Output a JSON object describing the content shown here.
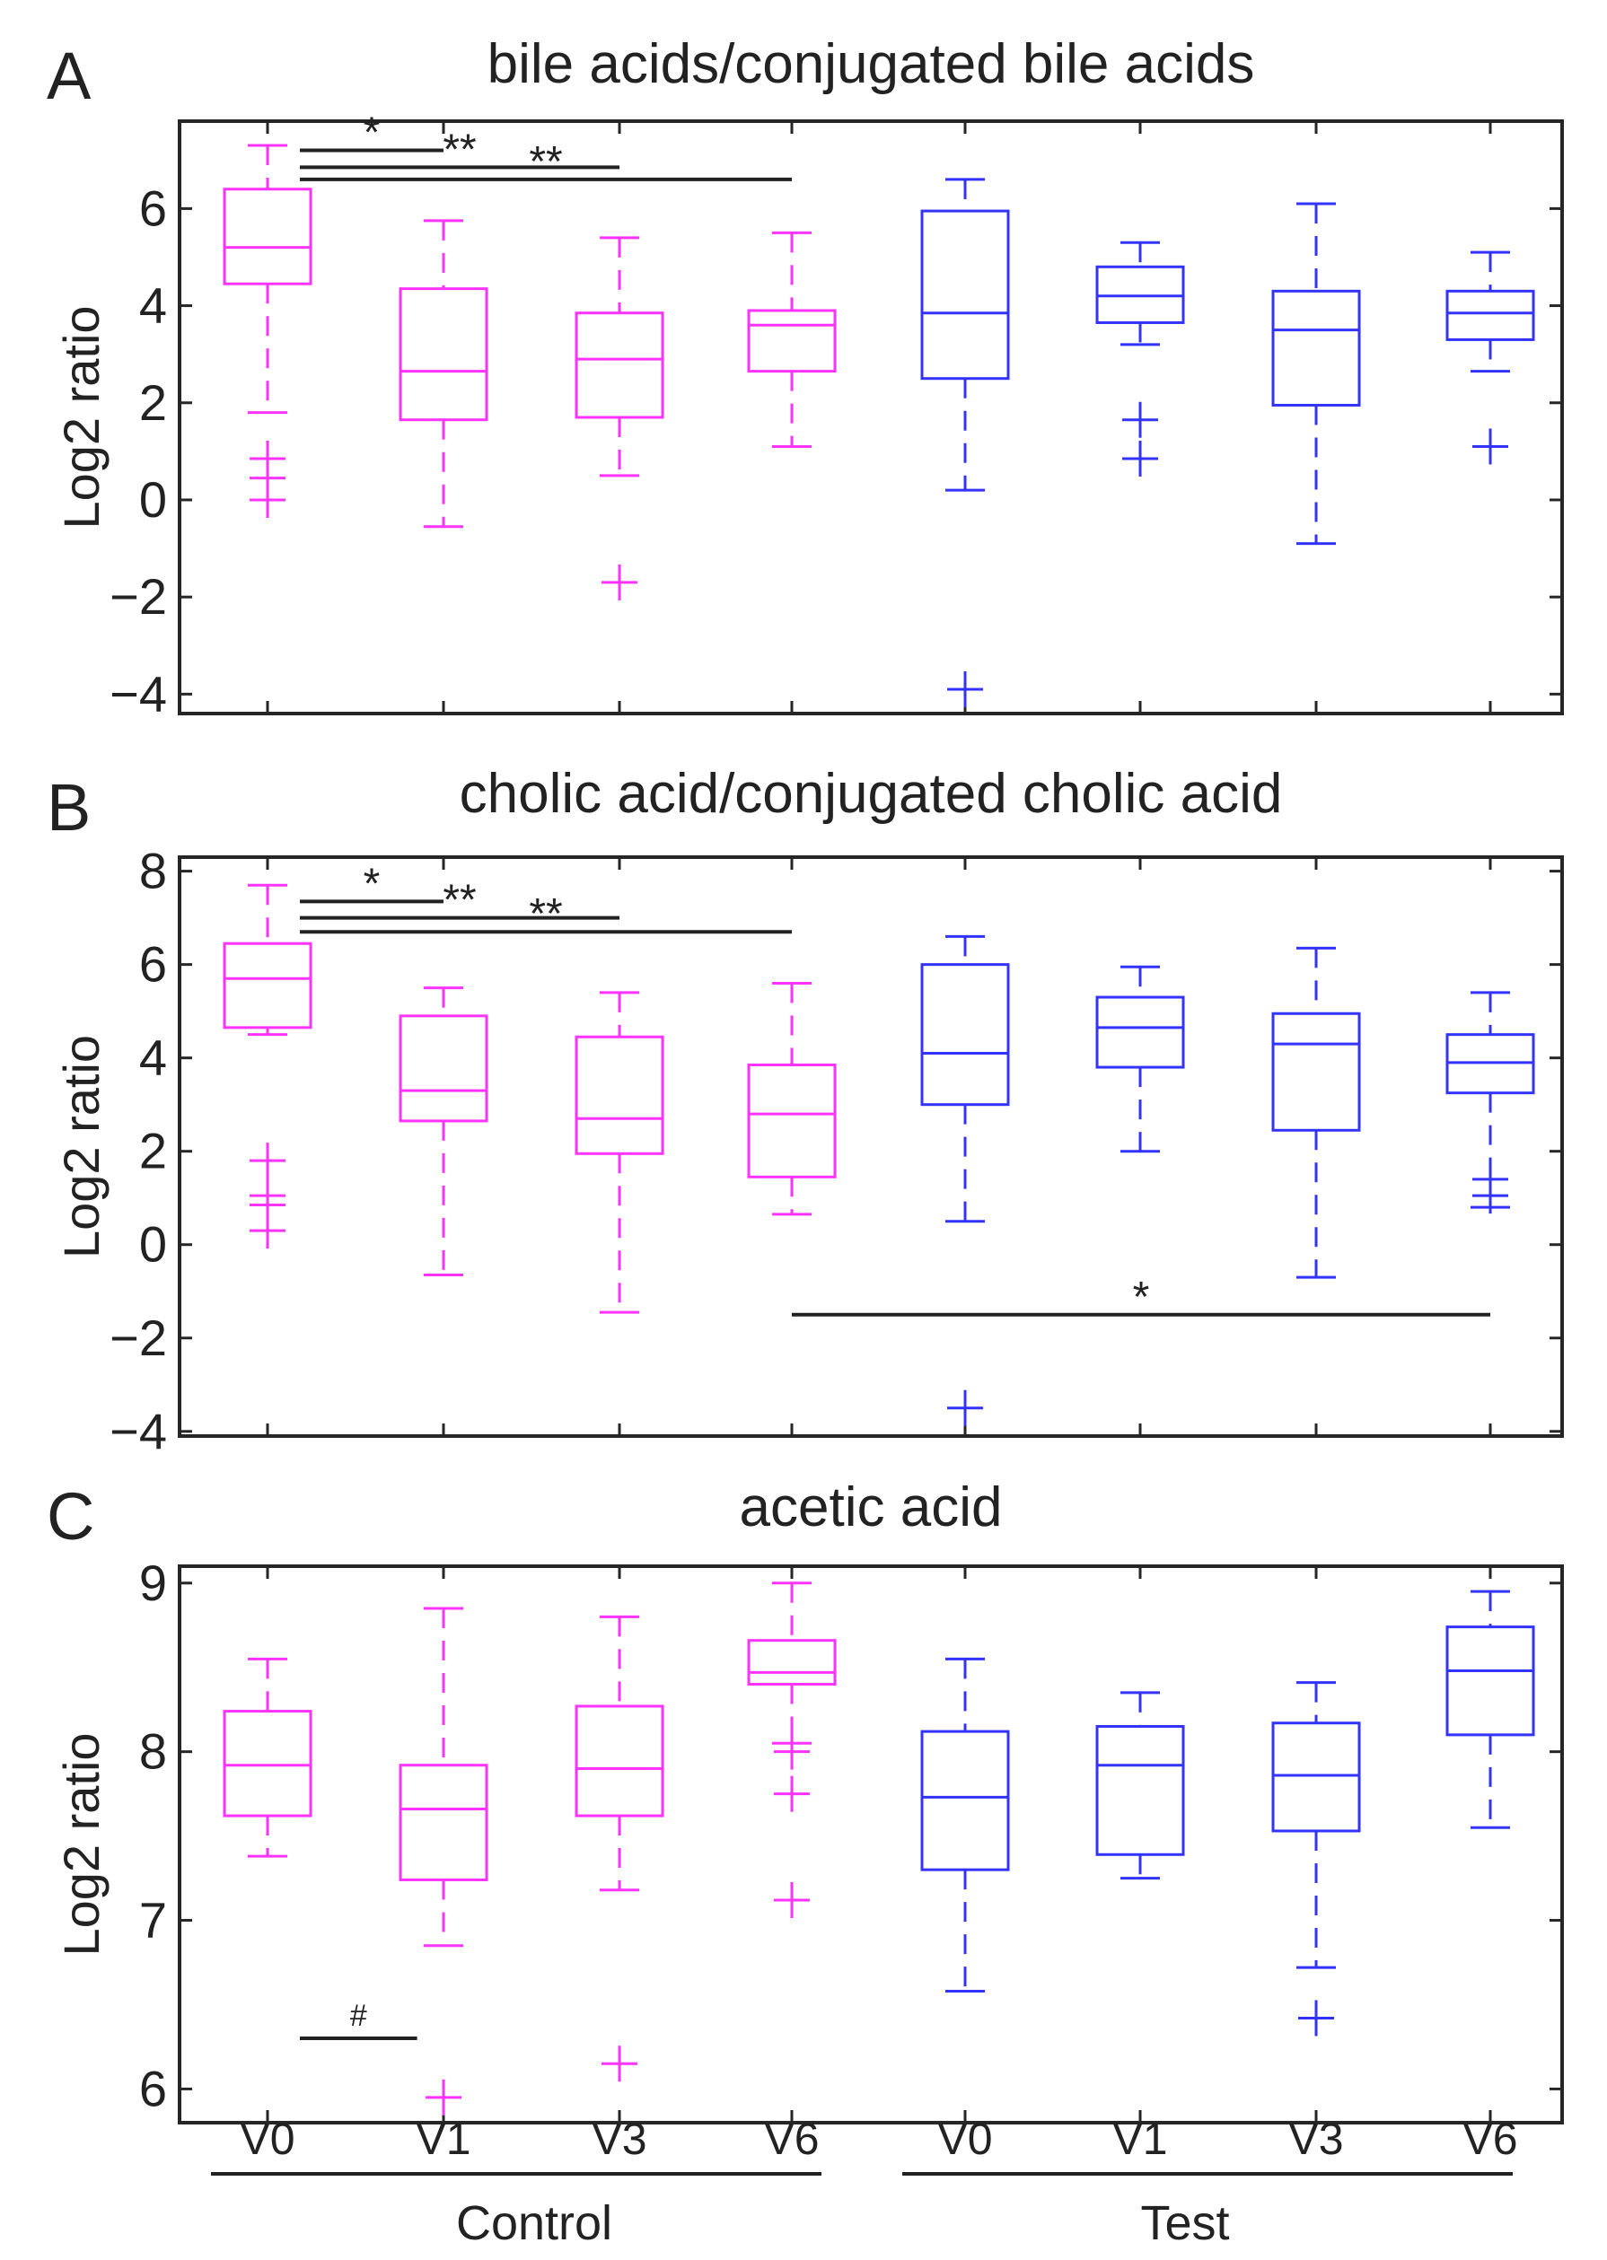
{
  "figure": {
    "x_group_labels": [
      "Control",
      "Test"
    ],
    "ylabel": "Log2 ratio",
    "colors": {
      "Control": "#ff33ff",
      "Test": "#3333ff",
      "annotation": "#222222"
    }
  },
  "chart_data": [
    {
      "type": "box",
      "panel": "A",
      "title": "bile acids/conjugated bile acids",
      "ylabel": "Log2 ratio",
      "ylim": [
        -4.4,
        7.8
      ],
      "yticks": [
        -4,
        -2,
        0,
        2,
        4,
        6
      ],
      "ytick_labels": [
        "−4",
        "−2",
        "0",
        "2",
        "4",
        "6"
      ],
      "categories": [
        "V0",
        "V1",
        "V3",
        "V6",
        "V0",
        "V1",
        "V3",
        "V6"
      ],
      "groups": [
        "Control",
        "Control",
        "Control",
        "Control",
        "Test",
        "Test",
        "Test",
        "Test"
      ],
      "boxes": [
        {
          "low": 1.8,
          "q1": 4.45,
          "median": 5.2,
          "q3": 6.4,
          "high": 7.3,
          "outliers": [
            0.85,
            0.45,
            0.0
          ]
        },
        {
          "low": -0.55,
          "q1": 1.65,
          "median": 2.65,
          "q3": 4.35,
          "high": 5.75,
          "outliers": []
        },
        {
          "low": 0.5,
          "q1": 1.7,
          "median": 2.9,
          "q3": 3.85,
          "high": 5.4,
          "outliers": [
            -1.7
          ]
        },
        {
          "low": 1.1,
          "q1": 2.65,
          "median": 3.6,
          "q3": 3.9,
          "high": 5.5,
          "outliers": []
        },
        {
          "low": 0.2,
          "q1": 2.5,
          "median": 3.85,
          "q3": 5.95,
          "high": 6.6,
          "outliers": [
            -3.9
          ]
        },
        {
          "low": 3.2,
          "q1": 3.65,
          "median": 4.2,
          "q3": 4.8,
          "high": 5.3,
          "outliers": [
            1.65,
            0.85
          ]
        },
        {
          "low": -0.9,
          "q1": 1.95,
          "median": 3.5,
          "q3": 4.3,
          "high": 6.1,
          "outliers": []
        },
        {
          "low": 2.65,
          "q1": 3.3,
          "median": 3.85,
          "q3": 4.3,
          "high": 5.1,
          "outliers": [
            1.1
          ]
        }
      ],
      "significance": [
        {
          "from": 0,
          "to": 1,
          "y": 7.2,
          "label": "*"
        },
        {
          "from": 0,
          "to": 2,
          "y": 6.85,
          "label": "**"
        },
        {
          "from": 0,
          "to": 3,
          "y": 6.6,
          "label": "**"
        }
      ]
    },
    {
      "type": "box",
      "panel": "B",
      "title": "cholic acid/conjugated cholic acid",
      "ylabel": "Log2 ratio",
      "ylim": [
        -4.1,
        8.3
      ],
      "yticks": [
        -4,
        -2,
        0,
        2,
        4,
        6,
        8
      ],
      "ytick_labels": [
        "−4",
        "−2",
        "0",
        "2",
        "4",
        "6",
        "8"
      ],
      "categories": [
        "V0",
        "V1",
        "V3",
        "V6",
        "V0",
        "V1",
        "V3",
        "V6"
      ],
      "groups": [
        "Control",
        "Control",
        "Control",
        "Control",
        "Test",
        "Test",
        "Test",
        "Test"
      ],
      "boxes": [
        {
          "low": 4.5,
          "q1": 4.65,
          "median": 5.7,
          "q3": 6.45,
          "high": 7.7,
          "outliers": [
            1.8,
            1.05,
            0.85,
            0.3
          ]
        },
        {
          "low": -0.65,
          "q1": 2.65,
          "median": 3.3,
          "q3": 4.9,
          "high": 5.5,
          "outliers": []
        },
        {
          "low": -1.45,
          "q1": 1.95,
          "median": 2.7,
          "q3": 4.45,
          "high": 5.4,
          "outliers": []
        },
        {
          "low": 0.65,
          "q1": 1.45,
          "median": 2.8,
          "q3": 3.85,
          "high": 5.6,
          "outliers": []
        },
        {
          "low": 0.5,
          "q1": 3.0,
          "median": 4.1,
          "q3": 6.0,
          "high": 6.6,
          "outliers": [
            -3.5
          ]
        },
        {
          "low": 2.0,
          "q1": 3.8,
          "median": 4.65,
          "q3": 5.3,
          "high": 5.95,
          "outliers": []
        },
        {
          "low": -0.7,
          "q1": 2.45,
          "median": 4.3,
          "q3": 4.95,
          "high": 6.35,
          "outliers": []
        },
        {
          "low": 0.8,
          "q1": 3.25,
          "median": 3.9,
          "q3": 4.5,
          "high": 5.4,
          "outliers": [
            1.4,
            1.05
          ]
        }
      ],
      "significance": [
        {
          "from": 0,
          "to": 1,
          "y": 7.35,
          "label": "*"
        },
        {
          "from": 0,
          "to": 2,
          "y": 7.0,
          "label": "**"
        },
        {
          "from": 0,
          "to": 3,
          "y": 6.7,
          "label": "**"
        },
        {
          "from": 3,
          "to": 7,
          "y": -1.5,
          "label": "*"
        }
      ]
    },
    {
      "type": "box",
      "panel": "C",
      "title": "acetic acid",
      "ylabel": "Log2 ratio",
      "ylim": [
        5.8,
        9.1
      ],
      "yticks": [
        6,
        7,
        8,
        9
      ],
      "ytick_labels": [
        "6",
        "7",
        "8",
        "9"
      ],
      "categories": [
        "V0",
        "V1",
        "V3",
        "V6",
        "V0",
        "V1",
        "V3",
        "V6"
      ],
      "groups": [
        "Control",
        "Control",
        "Control",
        "Control",
        "Test",
        "Test",
        "Test",
        "Test"
      ],
      "boxes": [
        {
          "low": 7.38,
          "q1": 7.62,
          "median": 7.92,
          "q3": 8.24,
          "high": 8.55,
          "outliers": []
        },
        {
          "low": 6.85,
          "q1": 7.24,
          "median": 7.66,
          "q3": 7.92,
          "high": 8.85,
          "outliers": [
            5.95
          ]
        },
        {
          "low": 7.18,
          "q1": 7.62,
          "median": 7.9,
          "q3": 8.27,
          "high": 8.8,
          "outliers": [
            6.15
          ]
        },
        {
          "low": 8.05,
          "q1": 8.4,
          "median": 8.47,
          "q3": 8.66,
          "high": 9.0,
          "outliers": [
            8.0,
            7.75,
            7.12
          ]
        },
        {
          "low": 6.58,
          "q1": 7.3,
          "median": 7.73,
          "q3": 8.12,
          "high": 8.55,
          "outliers": []
        },
        {
          "low": 7.25,
          "q1": 7.39,
          "median": 7.92,
          "q3": 8.15,
          "high": 8.35,
          "outliers": []
        },
        {
          "low": 6.72,
          "q1": 7.53,
          "median": 7.86,
          "q3": 8.17,
          "high": 8.41,
          "outliers": [
            6.42
          ]
        },
        {
          "low": 7.55,
          "q1": 8.1,
          "median": 8.48,
          "q3": 8.74,
          "high": 8.95,
          "outliers": []
        }
      ],
      "significance": [
        {
          "from": 0,
          "to": 0.85,
          "y": 6.3,
          "label": "#"
        }
      ]
    }
  ]
}
